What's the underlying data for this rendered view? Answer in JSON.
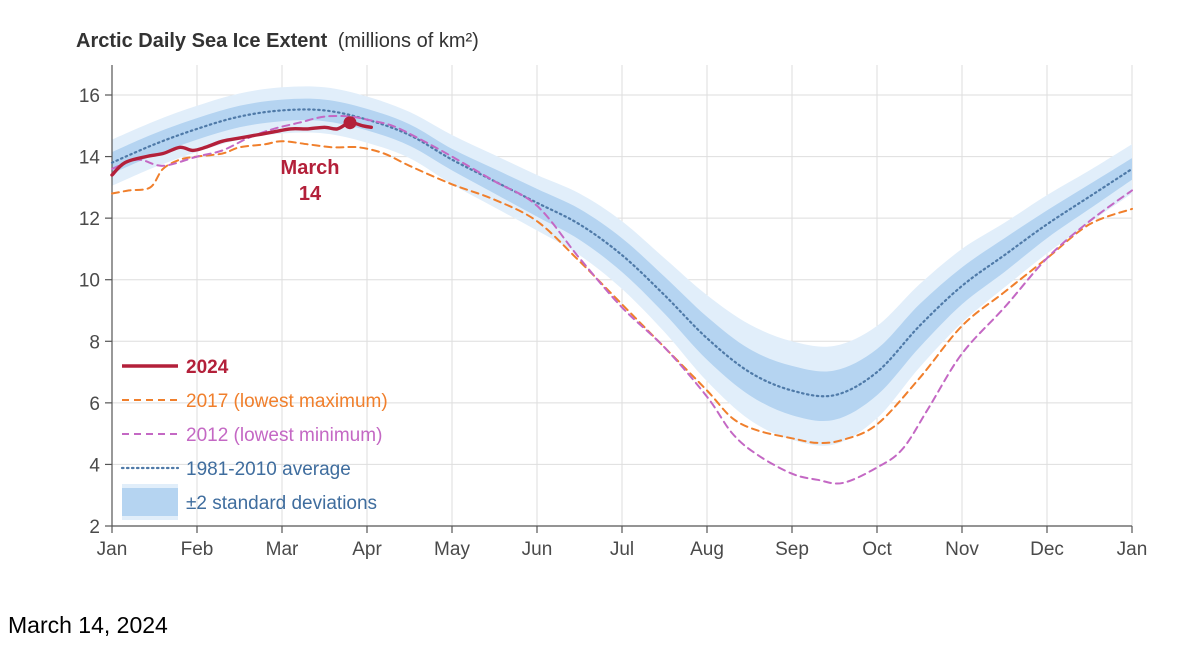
{
  "caption": "March 14, 2024",
  "chart_data": {
    "type": "line",
    "title": "Arctic Daily Sea Ice Extent",
    "title_units": "(millions of km²)",
    "xlabel": "",
    "ylabel": "",
    "ylim": [
      2,
      16.5
    ],
    "yticks": [
      2,
      4,
      6,
      8,
      10,
      12,
      14,
      16
    ],
    "xlim": [
      0,
      12
    ],
    "xticks": [
      {
        "pos": 0,
        "label": "Jan"
      },
      {
        "pos": 1,
        "label": "Feb"
      },
      {
        "pos": 2,
        "label": "Mar"
      },
      {
        "pos": 3,
        "label": "Apr"
      },
      {
        "pos": 4,
        "label": "May"
      },
      {
        "pos": 5,
        "label": "Jun"
      },
      {
        "pos": 6,
        "label": "Jul"
      },
      {
        "pos": 7,
        "label": "Aug"
      },
      {
        "pos": 8,
        "label": "Sep"
      },
      {
        "pos": 9,
        "label": "Oct"
      },
      {
        "pos": 10,
        "label": "Nov"
      },
      {
        "pos": 11,
        "label": "Dec"
      },
      {
        "pos": 12,
        "label": "Jan"
      }
    ],
    "grid": true,
    "legend_position": "bottom-left",
    "average_series": {
      "name": "1981-2010 average",
      "color": "#4f7aa8",
      "x": [
        0,
        0.5,
        1,
        1.5,
        2,
        2.5,
        3,
        3.5,
        4,
        4.5,
        5,
        5.5,
        6,
        6.5,
        7,
        7.5,
        8,
        8.5,
        9,
        9.5,
        10,
        10.5,
        11,
        11.5,
        12
      ],
      "y": [
        13.8,
        14.4,
        14.9,
        15.3,
        15.5,
        15.5,
        15.2,
        14.7,
        13.9,
        13.2,
        12.5,
        11.8,
        10.8,
        9.5,
        8.1,
        7.0,
        6.4,
        6.25,
        7.0,
        8.5,
        9.8,
        10.8,
        11.8,
        12.7,
        13.6
      ]
    },
    "std_band": {
      "name": "±2 standard deviations",
      "inner_halfwidth": [
        0.35,
        0.35,
        0.35,
        0.35,
        0.35,
        0.35,
        0.35,
        0.35,
        0.35,
        0.4,
        0.45,
        0.5,
        0.55,
        0.6,
        0.7,
        0.75,
        0.8,
        0.8,
        0.75,
        0.7,
        0.6,
        0.55,
        0.45,
        0.4,
        0.35
      ],
      "outer_halfwidth": [
        0.75,
        0.75,
        0.75,
        0.75,
        0.75,
        0.75,
        0.75,
        0.75,
        0.8,
        0.85,
        0.9,
        1.0,
        1.1,
        1.2,
        1.4,
        1.55,
        1.6,
        1.6,
        1.5,
        1.35,
        1.2,
        1.05,
        0.95,
        0.85,
        0.8
      ],
      "inner_color": "#b5d4f1",
      "outer_color": "#e1eefa"
    },
    "series": [
      {
        "name": "2017 (lowest maximum)",
        "color": "#f07f2c",
        "style": "dashed",
        "x": [
          0,
          0.2,
          0.45,
          0.6,
          0.8,
          1.0,
          1.3,
          1.5,
          1.8,
          2.0,
          2.3,
          2.6,
          2.9,
          3.2,
          3.5,
          4.0,
          4.5,
          5.0,
          5.5,
          6.0,
          6.5,
          7.0,
          7.3,
          7.6,
          8.0,
          8.3,
          8.6,
          9.0,
          9.5,
          10.0,
          10.5,
          11.0,
          11.5,
          12.0
        ],
        "y": [
          12.8,
          12.9,
          13.0,
          13.6,
          13.9,
          14.0,
          14.1,
          14.3,
          14.4,
          14.5,
          14.4,
          14.3,
          14.3,
          14.1,
          13.7,
          13.1,
          12.6,
          11.9,
          10.6,
          9.2,
          7.8,
          6.4,
          5.5,
          5.1,
          4.85,
          4.7,
          4.8,
          5.3,
          6.8,
          8.5,
          9.6,
          10.7,
          11.8,
          12.3
        ]
      },
      {
        "name": "2012 (lowest minimum)",
        "color": "#c468c4",
        "style": "dashed",
        "x": [
          0,
          0.3,
          0.6,
          1.0,
          1.3,
          1.6,
          1.9,
          2.2,
          2.5,
          2.8,
          3.0,
          3.3,
          3.6,
          4.0,
          4.5,
          5.0,
          5.5,
          6.0,
          6.5,
          7.0,
          7.3,
          7.6,
          8.0,
          8.3,
          8.6,
          9.0,
          9.3,
          9.6,
          10.0,
          10.5,
          11.0,
          11.5,
          12.0
        ],
        "y": [
          13.6,
          13.9,
          13.7,
          14.0,
          14.2,
          14.6,
          14.9,
          15.1,
          15.3,
          15.3,
          15.2,
          15.0,
          14.6,
          14.0,
          13.2,
          12.4,
          10.7,
          9.1,
          7.8,
          6.2,
          5.0,
          4.3,
          3.7,
          3.5,
          3.4,
          3.9,
          4.5,
          5.8,
          7.6,
          9.1,
          10.7,
          11.9,
          12.9
        ]
      },
      {
        "name": "2024",
        "color": "#b3203a",
        "style": "solid",
        "x": [
          0,
          0.15,
          0.4,
          0.6,
          0.8,
          0.95,
          1.1,
          1.3,
          1.5,
          1.7,
          1.9,
          2.1,
          2.3,
          2.5,
          2.65,
          2.8,
          2.95,
          3.05
        ],
        "y": [
          13.4,
          13.8,
          14.0,
          14.1,
          14.3,
          14.2,
          14.3,
          14.5,
          14.6,
          14.7,
          14.8,
          14.9,
          14.9,
          14.95,
          14.9,
          15.1,
          15.0,
          14.95
        ]
      }
    ],
    "annotation": {
      "label_line1": "March",
      "label_line2": "14",
      "x": 2.8,
      "y": 15.1
    }
  }
}
